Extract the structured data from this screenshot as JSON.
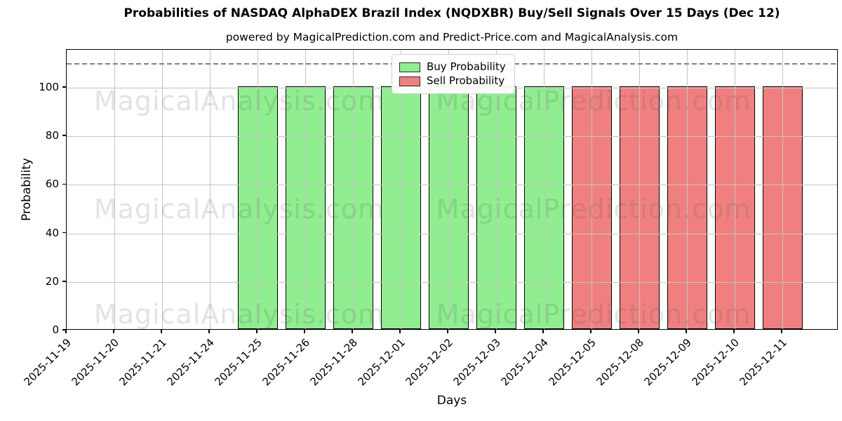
{
  "title": "Probabilities of NASDAQ AlphaDEX Brazil Index (NQDXBR) Buy/Sell Signals Over 15 Days (Dec 12)",
  "subtitle": "powered by MagicalPrediction.com and Predict-Price.com and MagicalAnalysis.com",
  "y_axis": {
    "label": "Probability",
    "ticks": [
      0,
      20,
      40,
      60,
      80,
      100
    ]
  },
  "x_axis": {
    "label": "Days"
  },
  "legend": {
    "items": [
      {
        "label": "Buy Probability",
        "color": "#90EE90"
      },
      {
        "label": "Sell Probability",
        "color": "#F08080"
      }
    ]
  },
  "watermarks": {
    "left": "MagicalAnalysis.com",
    "right": "MagicalPrediction.com"
  },
  "threshold_line": {
    "value": 110,
    "style": "dashed",
    "color": "#808080"
  },
  "style": {
    "grid_color": "#c4c4c4",
    "bar_edge_color": "#000000",
    "background": "#ffffff"
  },
  "chart_data": {
    "type": "bar",
    "title": "Probabilities of NASDAQ AlphaDEX Brazil Index (NQDXBR) Buy/Sell Signals Over 15 Days (Dec 12)",
    "xlabel": "Days",
    "ylabel": "Probability",
    "ylim": [
      0,
      115.6
    ],
    "grid": true,
    "legend_position": "upper center",
    "categories": [
      "2025-11-19",
      "2025-11-20",
      "2025-11-21",
      "2025-11-24",
      "2025-11-25",
      "2025-11-26",
      "2025-11-28",
      "2025-12-01",
      "2025-12-02",
      "2025-12-03",
      "2025-12-04",
      "2025-12-05",
      "2025-12-08",
      "2025-12-09",
      "2025-12-10",
      "2025-12-11"
    ],
    "series": [
      {
        "name": "Buy Probability",
        "color": "#90EE90",
        "values": [
          null,
          null,
          null,
          null,
          100,
          100,
          100,
          100,
          100,
          100,
          100,
          null,
          null,
          null,
          null,
          null
        ]
      },
      {
        "name": "Sell Probability",
        "color": "#F08080",
        "values": [
          null,
          null,
          null,
          null,
          null,
          null,
          null,
          null,
          null,
          null,
          null,
          100,
          100,
          100,
          100,
          100
        ]
      }
    ]
  }
}
